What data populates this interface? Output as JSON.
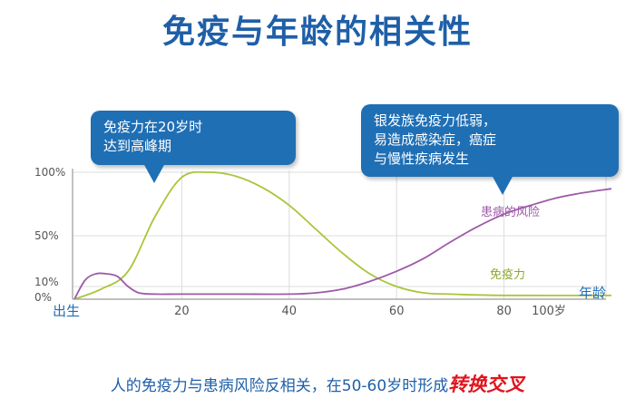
{
  "title": "免疫与年龄的相关性",
  "callouts": {
    "left_lines": [
      "免疫力在20岁时",
      "达到高峰期"
    ],
    "right_lines": [
      "银发族免疫力低弱，",
      "易造成感染症，癌症",
      "与慢性疾病发生"
    ]
  },
  "footer": {
    "text": "人的免疫力与患病风险反相关，在50-60岁时形成",
    "emphasis": "转换交叉"
  },
  "colors": {
    "immunity": "#a8c639",
    "risk": "#9e5aa8",
    "title": "#1f5fa8",
    "callout": "#1f6fb5",
    "emphasis": "#e0141e"
  },
  "chart_data": {
    "type": "line",
    "xlabel_start": "出生",
    "xlabel_end": "年龄",
    "x_ticks": [
      20,
      40,
      60,
      80
    ],
    "x_tick_last": "100岁",
    "y_ticks": [
      "100%",
      "50%",
      "10%",
      "0%"
    ],
    "y_tick_values": [
      100,
      50,
      10,
      0
    ],
    "xlim": [
      0,
      100
    ],
    "ylim": [
      0,
      100
    ],
    "grid": true,
    "series": [
      {
        "name": "免疫力",
        "x": [
          0,
          5,
          10,
          15,
          20,
          25,
          30,
          35,
          40,
          45,
          50,
          55,
          60,
          65,
          70,
          80,
          100
        ],
        "y": [
          0,
          8,
          22,
          65,
          96,
          100,
          97,
          88,
          74,
          55,
          36,
          20,
          10,
          5,
          4,
          3,
          3
        ]
      },
      {
        "name": "患病的风险",
        "x": [
          0,
          2,
          4,
          6,
          8,
          10,
          12,
          15,
          20,
          30,
          40,
          45,
          50,
          55,
          60,
          65,
          70,
          75,
          80,
          85,
          90,
          95,
          100
        ],
        "y": [
          0,
          15,
          20,
          20,
          18,
          10,
          5,
          4,
          4,
          4,
          4,
          5,
          8,
          14,
          22,
          32,
          45,
          57,
          67,
          74,
          80,
          84,
          87
        ]
      }
    ]
  }
}
